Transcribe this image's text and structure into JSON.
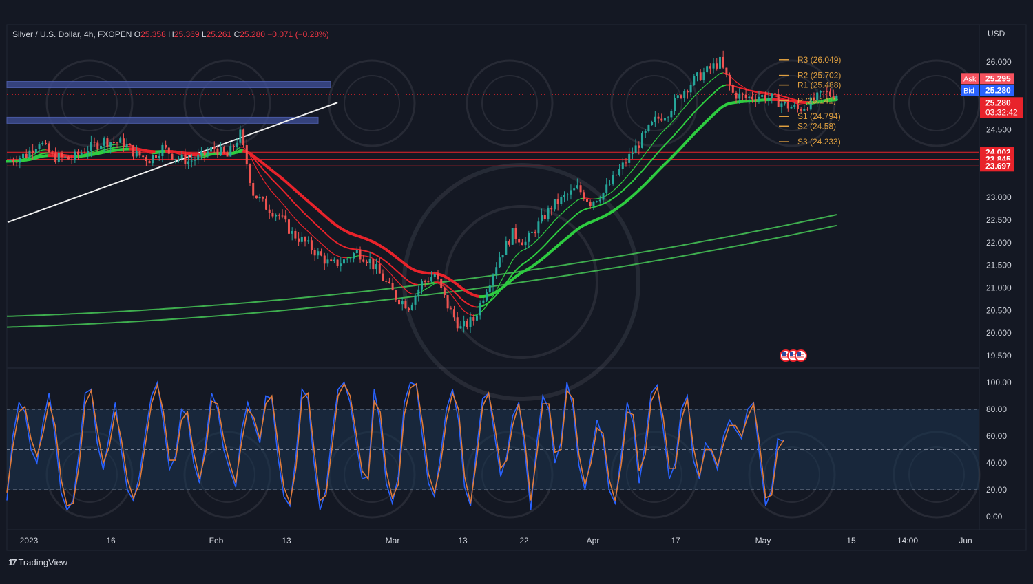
{
  "header": {
    "symbol": "Silver / U.S. Dollar, 4h, FXOPEN",
    "o_label": "O",
    "o_value": "25.358",
    "h_label": "H",
    "h_value": "25.369",
    "l_label": "L",
    "l_value": "25.261",
    "c_label": "C",
    "c_value": "25.280",
    "change": "−0.071 (−0.28%)"
  },
  "currency": "USD",
  "brand": {
    "logo": "17",
    "name": "TradingView"
  },
  "badges": {
    "ask_label": "Ask",
    "ask_value": "25.295",
    "bid_label": "Bid",
    "bid_value": "25.280",
    "last_value": "25.280",
    "countdown": "03:32:42"
  },
  "colors": {
    "background": "#141823",
    "bull": "#2ecc40",
    "bear": "#e8232b",
    "stoch_k": "#2962ff",
    "stoch_d": "#e07b39",
    "pivot": "#e0a040"
  },
  "chart_data": [
    {
      "type": "line",
      "panel": "price",
      "x_labels": [
        "2023",
        "16",
        "Feb",
        "13",
        "Mar",
        "13",
        "22",
        "Apr",
        "17",
        "May",
        "15",
        "14:00",
        "Jun"
      ],
      "y_ticks": [
        "26.000",
        "24.500",
        "23.000",
        "22.500",
        "22.000",
        "21.500",
        "21.000",
        "20.500",
        "20.000",
        "19.500"
      ],
      "ylim": [
        19.2,
        26.5
      ],
      "series": [
        {
          "x": [
            0,
            3,
            5,
            7,
            10,
            12,
            15,
            18,
            20,
            22,
            24,
            26,
            28,
            30,
            32,
            34,
            36,
            38,
            40,
            42,
            44,
            46,
            48,
            50,
            52,
            54,
            56,
            58,
            60,
            62,
            64,
            66,
            68,
            70,
            72,
            74,
            76,
            78,
            80,
            82,
            84,
            86,
            88,
            90,
            92,
            94,
            96,
            98,
            100,
            102,
            104,
            106,
            108,
            110,
            112,
            114,
            116,
            118,
            120,
            122,
            124,
            126,
            128
          ],
          "y": [
            23.8,
            23.95,
            24.25,
            23.9,
            23.85,
            24.05,
            24.25,
            24.2,
            23.95,
            23.85,
            24.1,
            23.9,
            23.8,
            23.9,
            24.1,
            23.9,
            24.4,
            23.1,
            22.8,
            22.6,
            22.2,
            22.0,
            21.75,
            21.5,
            21.6,
            21.8,
            21.6,
            21.2,
            20.8,
            20.6,
            21.1,
            21.3,
            20.6,
            20.1,
            20.3,
            21.0,
            21.7,
            22.2,
            22.0,
            22.4,
            22.8,
            23.0,
            23.2,
            22.9,
            23.1,
            23.5,
            23.9,
            24.3,
            24.7,
            24.9,
            25.3,
            25.6,
            25.8,
            26.0,
            25.3,
            25.2,
            25.25,
            25.2,
            25.05,
            24.95,
            25.1,
            25.3,
            25.28
          ]
        }
      ],
      "pivots": [
        {
          "label": "R3 (26.049)",
          "value": 26.049
        },
        {
          "label": "R2 (25.702)",
          "value": 25.702
        },
        {
          "label": "R1 (25.488)",
          "value": 25.488
        },
        {
          "label": "P (25.141)",
          "value": 25.141
        },
        {
          "label": "S1 (24.794)",
          "value": 24.794
        },
        {
          "label": "S2 (24.58)",
          "value": 24.58
        },
        {
          "label": "S3 (24.233)",
          "value": 24.233
        }
      ],
      "price_lines": [
        {
          "label": "24.002",
          "value": 24.002
        },
        {
          "label": "23.845",
          "value": 23.845
        },
        {
          "label": "23.697",
          "value": 23.697
        }
      ],
      "zones": [
        {
          "value": 25.49
        },
        {
          "value": 24.7
        }
      ],
      "trendline": {
        "x_start": 0,
        "y_start": 22.45,
        "x_end": 51,
        "y_end": 25.1
      }
    },
    {
      "type": "line",
      "panel": "stochastic",
      "y_ticks": [
        "100.00",
        "80.00",
        "60.00",
        "40.00",
        "20.00",
        "0.00"
      ],
      "ylim": [
        0,
        100
      ],
      "levels": [
        80,
        50,
        20
      ],
      "series": [
        {
          "values": [
            12,
            60,
            85,
            78,
            50,
            40,
            70,
            92,
            60,
            18,
            5,
            12,
            48,
            92,
            95,
            55,
            35,
            60,
            85,
            50,
            20,
            12,
            30,
            62,
            90,
            100,
            70,
            35,
            45,
            80,
            75,
            40,
            25,
            55,
            92,
            80,
            50,
            35,
            22,
            65,
            85,
            70,
            55,
            90,
            88,
            45,
            15,
            8,
            45,
            95,
            88,
            40,
            5,
            20,
            62,
            95,
            100,
            85,
            55,
            28,
            30,
            95,
            70,
            25,
            10,
            30,
            85,
            100,
            98,
            60,
            25,
            15,
            45,
            80,
            95,
            72,
            22,
            8,
            50,
            88,
            92,
            60,
            30,
            45,
            75,
            85,
            50,
            5,
            55,
            90,
            80,
            40,
            55,
            100,
            82,
            38,
            20,
            45,
            72,
            58,
            20,
            10,
            45,
            85,
            70,
            25,
            55,
            92,
            98,
            65,
            28,
            40,
            80,
            90,
            42,
            28,
            55,
            48,
            35,
            60,
            72,
            65,
            58,
            80,
            85,
            45,
            8,
            20,
            58,
            56
          ]
        },
        {
          "values": [
            18,
            52,
            78,
            82,
            58,
            45,
            62,
            85,
            68,
            28,
            8,
            10,
            38,
            84,
            94,
            65,
            40,
            52,
            78,
            58,
            28,
            14,
            24,
            54,
            84,
            98,
            78,
            42,
            42,
            72,
            78,
            48,
            28,
            48,
            86,
            84,
            58,
            40,
            25,
            56,
            80,
            74,
            58,
            84,
            90,
            55,
            22,
            10,
            36,
            88,
            92,
            50,
            12,
            16,
            52,
            90,
            99,
            90,
            62,
            34,
            28,
            86,
            78,
            34,
            14,
            24,
            76,
            96,
            99,
            70,
            32,
            18,
            38,
            72,
            92,
            80,
            30,
            10,
            42,
            82,
            92,
            68,
            36,
            42,
            68,
            84,
            58,
            12,
            46,
            84,
            84,
            48,
            50,
            94,
            88,
            46,
            24,
            40,
            66,
            62,
            28,
            12,
            38,
            78,
            76,
            34,
            46,
            86,
            96,
            74,
            36,
            36,
            72,
            88,
            52,
            30,
            50,
            50,
            38,
            54,
            68,
            68,
            60,
            74,
            84,
            54,
            14,
            16,
            50,
            57
          ]
        }
      ]
    }
  ]
}
